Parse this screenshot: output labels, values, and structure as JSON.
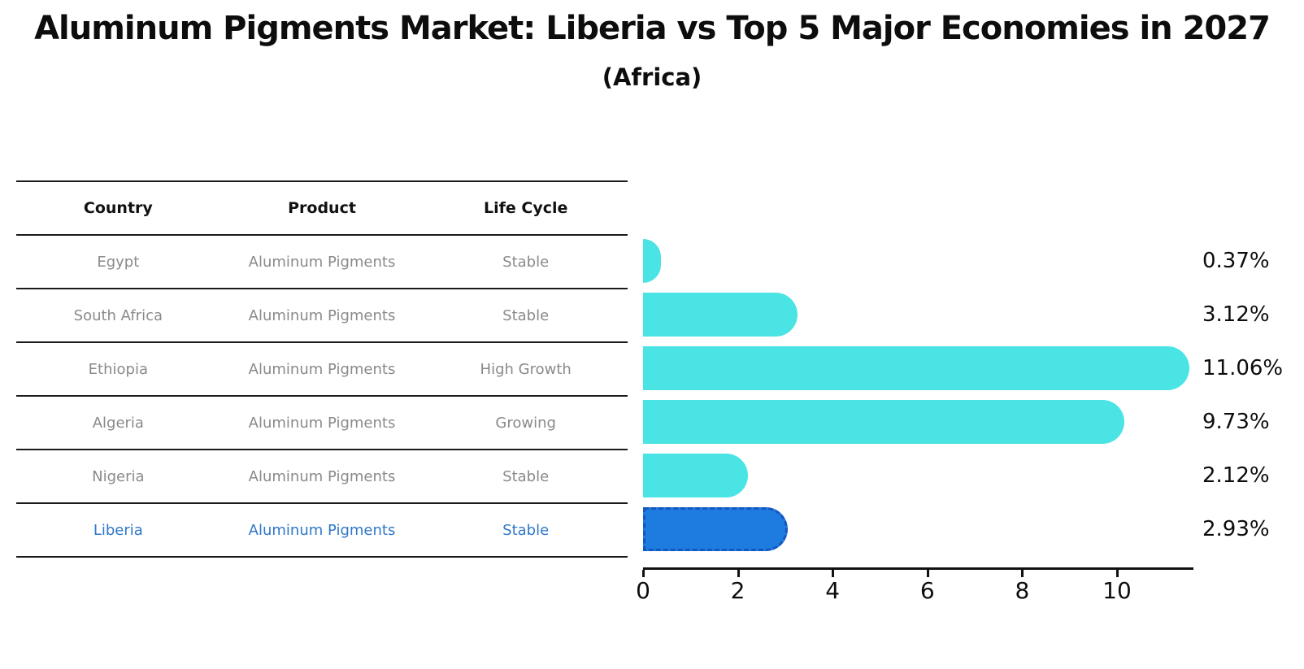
{
  "title": "Aluminum Pigments Market: Liberia vs Top 5 Major Economies in 2027",
  "subtitle": "(Africa)",
  "table": {
    "headers": [
      "Country",
      "Product",
      "Life Cycle"
    ],
    "rows": [
      {
        "country": "Egypt",
        "product": "Aluminum Pigments",
        "life_cycle": "Stable",
        "highlighted": false
      },
      {
        "country": "South Africa",
        "product": "Aluminum Pigments",
        "life_cycle": "Stable",
        "highlighted": false
      },
      {
        "country": "Ethiopia",
        "product": "Aluminum Pigments",
        "life_cycle": "High Growth",
        "highlighted": false
      },
      {
        "country": "Algeria",
        "product": "Aluminum Pigments",
        "life_cycle": "Growing",
        "highlighted": false
      },
      {
        "country": "Nigeria",
        "product": "Aluminum Pigments",
        "life_cycle": "Stable",
        "highlighted": false
      },
      {
        "country": "Liberia",
        "product": "Aluminum Pigments",
        "life_cycle": "Stable",
        "highlighted": true
      }
    ]
  },
  "chart_data": {
    "type": "bar",
    "orientation": "horizontal",
    "title": "Aluminum Pigments Market: Liberia vs Top 5 Major Economies in 2027",
    "subtitle": "(Africa)",
    "categories": [
      "Egypt",
      "South Africa",
      "Ethiopia",
      "Algeria",
      "Nigeria",
      "Liberia"
    ],
    "values": [
      0.37,
      3.12,
      11.06,
      9.73,
      2.12,
      2.93
    ],
    "value_labels": [
      "0.37%",
      "3.12%",
      "11.06%",
      "9.73%",
      "2.12%",
      "2.93%"
    ],
    "x_ticks": [
      "0",
      "2",
      "4",
      "6",
      "8",
      "10"
    ],
    "x_tick_values": [
      0,
      2,
      4,
      6,
      8,
      10
    ],
    "xlim": [
      0,
      11.6
    ],
    "grid": false,
    "legend": false,
    "highlight_index": 5,
    "bar_color": "#4AE4E4",
    "highlight_bar_color": "#1E7BE0",
    "highlight_border_color": "#1457BE"
  },
  "colors": {
    "title_text": "#0D0D0D",
    "table_header_text": "#111111",
    "table_body_text": "#8A8A8A",
    "highlight_text": "#2F78C8",
    "table_line": "#1A1A1A",
    "axis": "#111111"
  }
}
